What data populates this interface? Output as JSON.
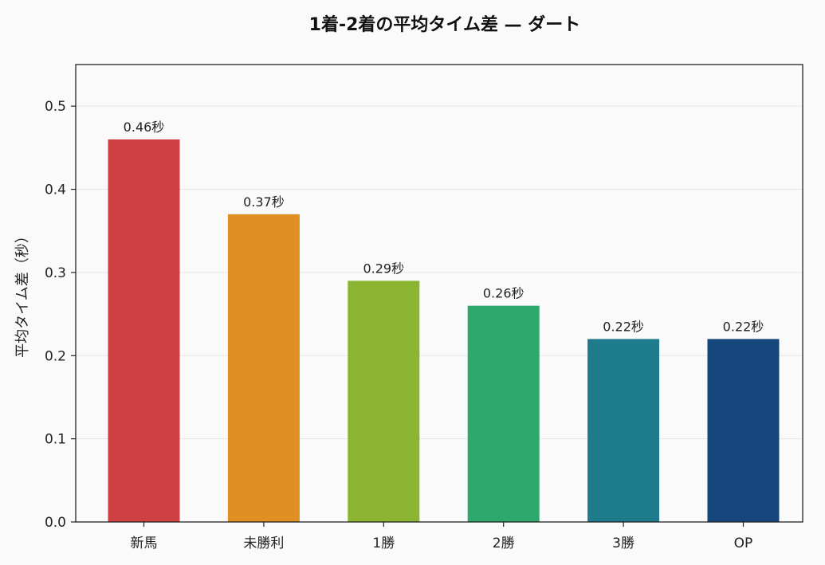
{
  "chart_data": {
    "type": "bar",
    "title": "1着-2着の平均タイム差 — ダート",
    "xlabel": "",
    "ylabel": "平均タイム差（秒）",
    "categories": [
      "新馬",
      "未勝利",
      "1勝",
      "2勝",
      "3勝",
      "OP"
    ],
    "values": [
      0.46,
      0.37,
      0.29,
      0.26,
      0.22,
      0.22
    ],
    "value_labels": [
      "0.46秒",
      "0.37秒",
      "0.29秒",
      "0.26秒",
      "0.22秒",
      "0.22秒"
    ],
    "bar_colors": [
      "#d04042",
      "#e09022",
      "#8cb533",
      "#2ea86c",
      "#1e7b8c",
      "#15467c"
    ],
    "ylim": [
      0,
      0.55
    ],
    "yticks": [
      0.0,
      0.1,
      0.2,
      0.3,
      0.4,
      0.5
    ],
    "ytick_labels": [
      "0.0",
      "0.1",
      "0.2",
      "0.3",
      "0.4",
      "0.5"
    ],
    "grid": true,
    "legend": false
  },
  "colors": {
    "background": "#fafafa",
    "grid": "#e6e6e6",
    "axis": "#222222",
    "text": "#222222"
  }
}
